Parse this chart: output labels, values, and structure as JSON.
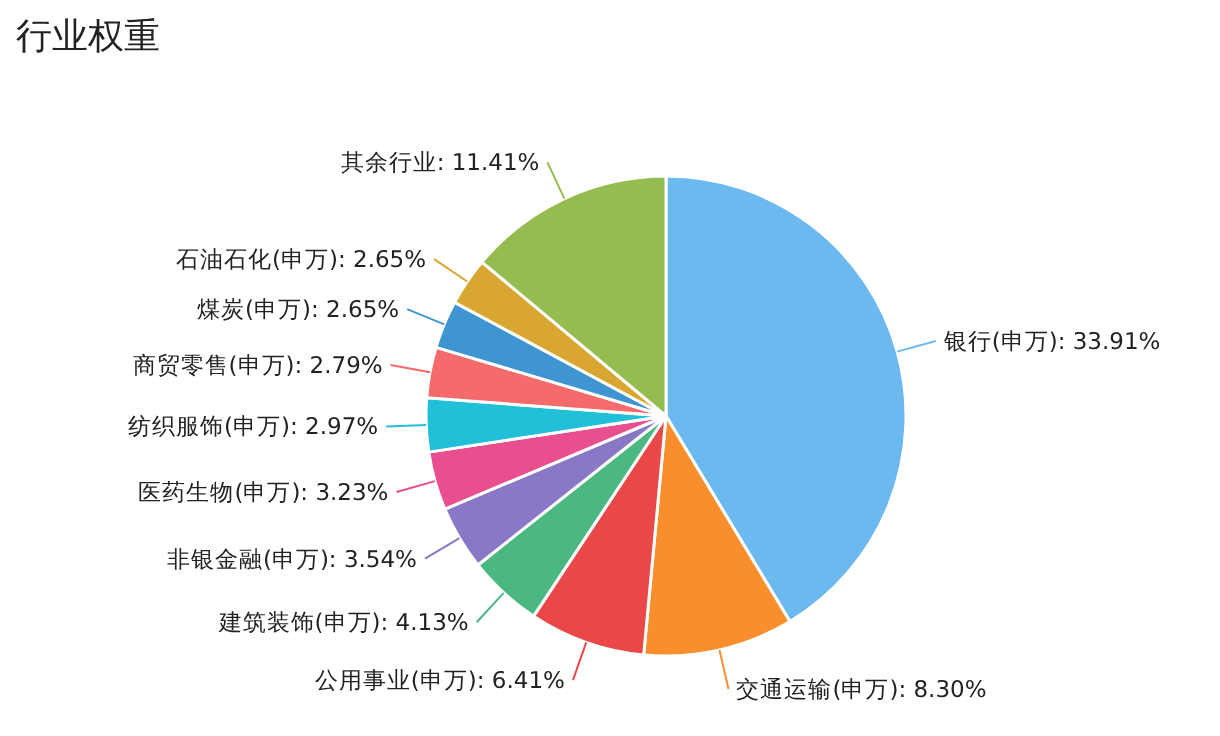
{
  "chart_data": {
    "type": "pie",
    "title": "行业权重",
    "categories": [
      "银行(申万)",
      "交通运输(申万)",
      "公用事业(申万)",
      "建筑装饰(申万)",
      "非银金融(申万)",
      "医药生物(申万)",
      "纺织服饰(申万)",
      "商贸零售(申万)",
      "煤炭(申万)",
      "石油石化(申万)",
      "其余行业"
    ],
    "values": [
      33.91,
      8.3,
      6.41,
      4.13,
      3.54,
      3.23,
      2.97,
      2.79,
      2.65,
      2.65,
      11.41
    ],
    "value_labels": [
      "33.91%",
      "8.30%",
      "6.41%",
      "4.13%",
      "3.54%",
      "3.23%",
      "2.97%",
      "2.79%",
      "2.65%",
      "2.65%",
      "11.41%"
    ],
    "colors": [
      "#6cb9f0",
      "#f98f2c",
      "#ea4848",
      "#4ab880",
      "#8878c6",
      "#e94f8f",
      "#22bfd8",
      "#f56a6a",
      "#3f95d1",
      "#d8a631",
      "#94bc50"
    ],
    "legend": false
  }
}
